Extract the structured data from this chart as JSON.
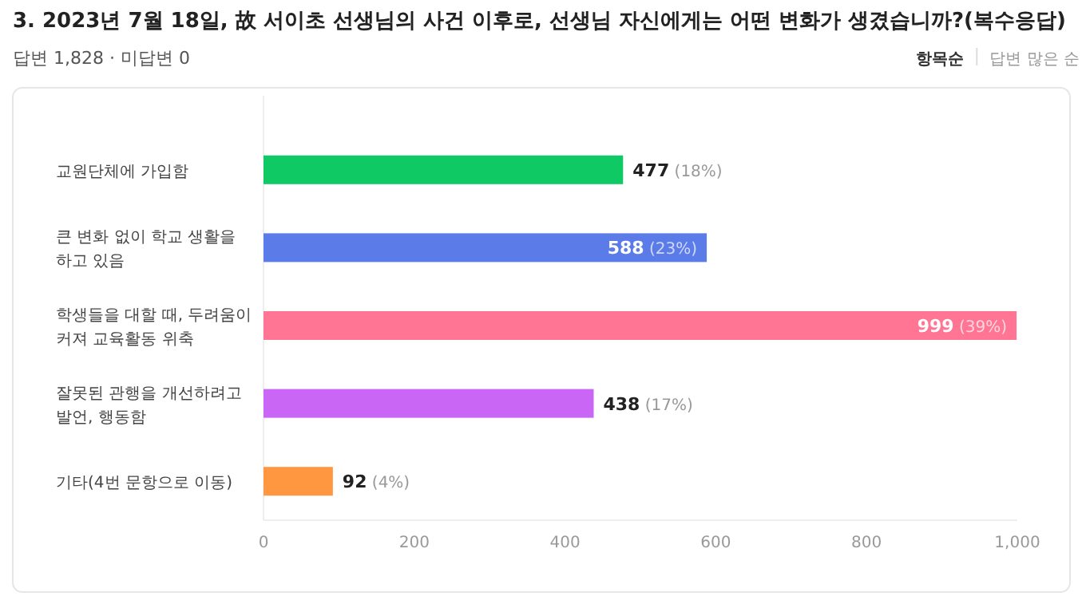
{
  "chart_data": {
    "type": "bar",
    "orientation": "horizontal",
    "title": "3. 2023년 7월 18일, 故 서이초 선생님의 사건 이후로, 선생님 자신에게는 어떤 변화가 생겼습니까?(복수응답)",
    "subtitle": "답변 1,828 · 미답변 0",
    "annotations": [
      "항목순",
      "답변 많은 순"
    ],
    "categories": [
      "교원단체에 가입함",
      "큰 변화 없이 학교 생활을 하고 있음",
      "학생들을 대할 때, 두려움이 커져 교육활동 위축",
      "잘못된 관행을 개선하려고 발언, 행동함",
      "기타(4번 문항으로 이동)"
    ],
    "values": [
      477,
      588,
      999,
      438,
      92
    ],
    "colors": [
      "#0fca64",
      "#5b7be8",
      "#ff7593",
      "#c966f5",
      "#ff9640"
    ],
    "value_labels": [
      "477 (18%)",
      "588 (23%)",
      "999 (39%)",
      "438 (17%)",
      "92 (4%)"
    ],
    "xlim": [
      0,
      1000
    ],
    "xticks": [
      0,
      200,
      400,
      600,
      800,
      {
        "value": 1000,
        "label": "1,000"
      }
    ]
  }
}
